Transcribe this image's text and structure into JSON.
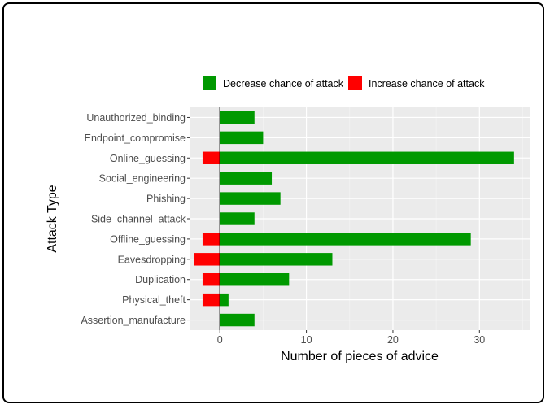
{
  "chart_data": {
    "type": "bar",
    "orientation": "horizontal",
    "title": "",
    "xlabel": "Number of pieces of advice",
    "ylabel": "Attack Type",
    "categories": [
      "Unauthorized_binding",
      "Endpoint_compromise",
      "Online_guessing",
      "Social_engineering",
      "Phishing",
      "Side_channel_attack",
      "Offline_guessing",
      "Eavesdropping",
      "Duplication",
      "Physical_theft",
      "Assertion_manufacture"
    ],
    "series": [
      {
        "name": "Decrease chance of attack",
        "color": "#009900",
        "values": [
          4,
          5,
          34,
          6,
          7,
          4,
          29,
          13,
          8,
          1,
          4
        ]
      },
      {
        "name": "Increase chance of attack",
        "color": "#ff0000",
        "values": [
          0,
          0,
          -2,
          0,
          0,
          0,
          -2,
          -3,
          -2,
          -2,
          0
        ]
      }
    ],
    "xlim": [
      -3.5,
      35.8
    ],
    "xticks": [
      0,
      10,
      20,
      30
    ],
    "grid": true,
    "legend_position": "top"
  }
}
